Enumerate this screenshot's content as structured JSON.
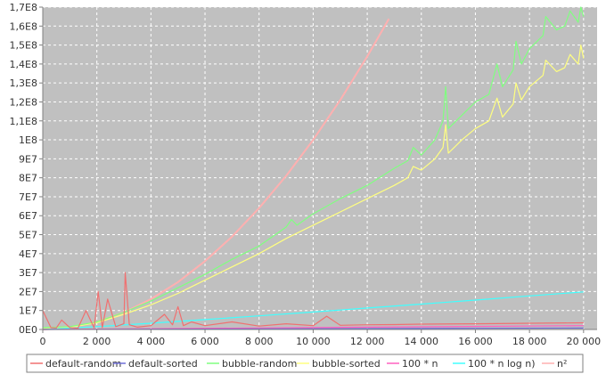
{
  "chart_data": {
    "type": "line",
    "title": "",
    "xlabel": "",
    "ylabel": "",
    "xlim": [
      0,
      20500
    ],
    "ylim": [
      0,
      170000000
    ],
    "grid": true,
    "legend_position": "bottom",
    "x_ticks": [
      {
        "value": 0,
        "label": "0"
      },
      {
        "value": 2000,
        "label": "2 000"
      },
      {
        "value": 4000,
        "label": "4 000"
      },
      {
        "value": 6000,
        "label": "6 000"
      },
      {
        "value": 8000,
        "label": "8 000"
      },
      {
        "value": 10000,
        "label": "10 000"
      },
      {
        "value": 12000,
        "label": "12 000"
      },
      {
        "value": 14000,
        "label": "14 000"
      },
      {
        "value": 16000,
        "label": "16 000"
      },
      {
        "value": 18000,
        "label": "18 000"
      },
      {
        "value": 20000,
        "label": "20 000"
      }
    ],
    "y_ticks": [
      {
        "value": 0,
        "label": "0E0"
      },
      {
        "value": 10000000,
        "label": "1E7"
      },
      {
        "value": 20000000,
        "label": "2E7"
      },
      {
        "value": 30000000,
        "label": "3E7"
      },
      {
        "value": 40000000,
        "label": "4E7"
      },
      {
        "value": 50000000,
        "label": "5E7"
      },
      {
        "value": 60000000,
        "label": "6E7"
      },
      {
        "value": 70000000,
        "label": "7E7"
      },
      {
        "value": 80000000,
        "label": "8E7"
      },
      {
        "value": 90000000,
        "label": "9E7"
      },
      {
        "value": 100000000,
        "label": "1E8"
      },
      {
        "value": 110000000,
        "label": "1,1E8"
      },
      {
        "value": 120000000,
        "label": "1,2E8"
      },
      {
        "value": 130000000,
        "label": "1,3E8"
      },
      {
        "value": 140000000,
        "label": "1,4E8"
      },
      {
        "value": 150000000,
        "label": "1,5E8"
      },
      {
        "value": 160000000,
        "label": "1,6E8"
      },
      {
        "value": 170000000,
        "label": "1,7E8"
      }
    ],
    "series": [
      {
        "name": "default-random",
        "color": "#f07070",
        "x": [
          0,
          300,
          500,
          700,
          1000,
          1300,
          1600,
          1900,
          2050,
          2200,
          2400,
          2700,
          3000,
          3050,
          3200,
          3500,
          4000,
          4500,
          4800,
          5000,
          5200,
          5500,
          6000,
          7000,
          8000,
          9000,
          10000,
          10500,
          11000,
          12000,
          13000,
          14000,
          16000,
          18000,
          20000
        ],
        "y": [
          10000000,
          1000000,
          800000,
          5000000,
          1000000,
          600000,
          10000000,
          800000,
          20000000,
          1000000,
          16000000,
          1500000,
          3000000,
          30000000,
          2500000,
          1200000,
          2000000,
          8000000,
          2500000,
          12000000,
          2000000,
          4000000,
          2000000,
          4000000,
          1800000,
          3000000,
          2000000,
          7000000,
          2200000,
          2500000,
          2600000,
          2800000,
          3000000,
          3300000,
          3500000
        ]
      },
      {
        "name": "default-sorted",
        "color": "#6f6fd8",
        "x": [
          0,
          4000,
          8000,
          12000,
          16000,
          20000
        ],
        "y": [
          0,
          150000,
          300000,
          450000,
          600000,
          750000
        ]
      },
      {
        "name": "bubble-random",
        "color": "#80ff80",
        "x": [
          0,
          1000,
          2000,
          3000,
          4000,
          5000,
          6000,
          7000,
          8000,
          9000,
          9200,
          9400,
          10000,
          11000,
          12000,
          13000,
          13500,
          13700,
          14000,
          14500,
          14800,
          14900,
          15000,
          15500,
          16000,
          16500,
          16800,
          17000,
          17400,
          17500,
          17700,
          18000,
          18500,
          18600,
          19000,
          19300,
          19500,
          19800,
          19900,
          20000
        ],
        "y": [
          1000000,
          1500000,
          4000000,
          9000000,
          15000000,
          22000000,
          29000000,
          37000000,
          44000000,
          54000000,
          58000000,
          55000000,
          61000000,
          69000000,
          76000000,
          85000000,
          89000000,
          96000000,
          92000000,
          100000000,
          110000000,
          128000000,
          106000000,
          113000000,
          120000000,
          124000000,
          140000000,
          128000000,
          137000000,
          152000000,
          140000000,
          148000000,
          155000000,
          165000000,
          158000000,
          160000000,
          168000000,
          162000000,
          175000000,
          165000000
        ]
      },
      {
        "name": "bubble-sorted",
        "color": "#ffff80",
        "x": [
          0,
          1000,
          2000,
          3000,
          4000,
          5000,
          6000,
          7000,
          8000,
          9000,
          10000,
          11000,
          12000,
          13000,
          13500,
          13700,
          14000,
          14500,
          14800,
          14900,
          15000,
          15500,
          16000,
          16500,
          16800,
          17000,
          17400,
          17500,
          17700,
          18000,
          18500,
          18600,
          19000,
          19300,
          19500,
          19800,
          19900,
          20000
        ],
        "y": [
          800000,
          1200000,
          3500000,
          8000000,
          13000000,
          19000000,
          26000000,
          33000000,
          40000000,
          48000000,
          55000000,
          62000000,
          69000000,
          76000000,
          80000000,
          86000000,
          84000000,
          90000000,
          96000000,
          108000000,
          93000000,
          100000000,
          106000000,
          110000000,
          122000000,
          112000000,
          119000000,
          130000000,
          121000000,
          128000000,
          134000000,
          142000000,
          136000000,
          138000000,
          145000000,
          140000000,
          150000000,
          143000000
        ]
      },
      {
        "name": "100 * n",
        "color": "#ff60c0",
        "x": [
          0,
          20000
        ],
        "y": [
          0,
          2000000
        ]
      },
      {
        "name": "100 * n log n)",
        "color": "#40ffff",
        "x": [
          0,
          2000,
          4000,
          6000,
          8000,
          10000,
          12000,
          14000,
          16000,
          18000,
          20000
        ],
        "y": [
          0,
          1500000,
          3300000,
          5200000,
          7200000,
          9200000,
          11300000,
          13400000,
          15500000,
          17700000,
          19800000
        ]
      },
      {
        "name": "n²",
        "color": "#ffb0b0",
        "x": [
          0,
          1000,
          2000,
          3000,
          4000,
          5000,
          6000,
          7000,
          8000,
          9000,
          10000,
          11000,
          12000,
          12800
        ],
        "y": [
          0,
          1000000,
          4000000,
          9000000,
          16000000,
          25000000,
          36000000,
          49000000,
          64000000,
          81000000,
          100000000,
          121000000,
          144000000,
          163840000
        ]
      }
    ]
  }
}
